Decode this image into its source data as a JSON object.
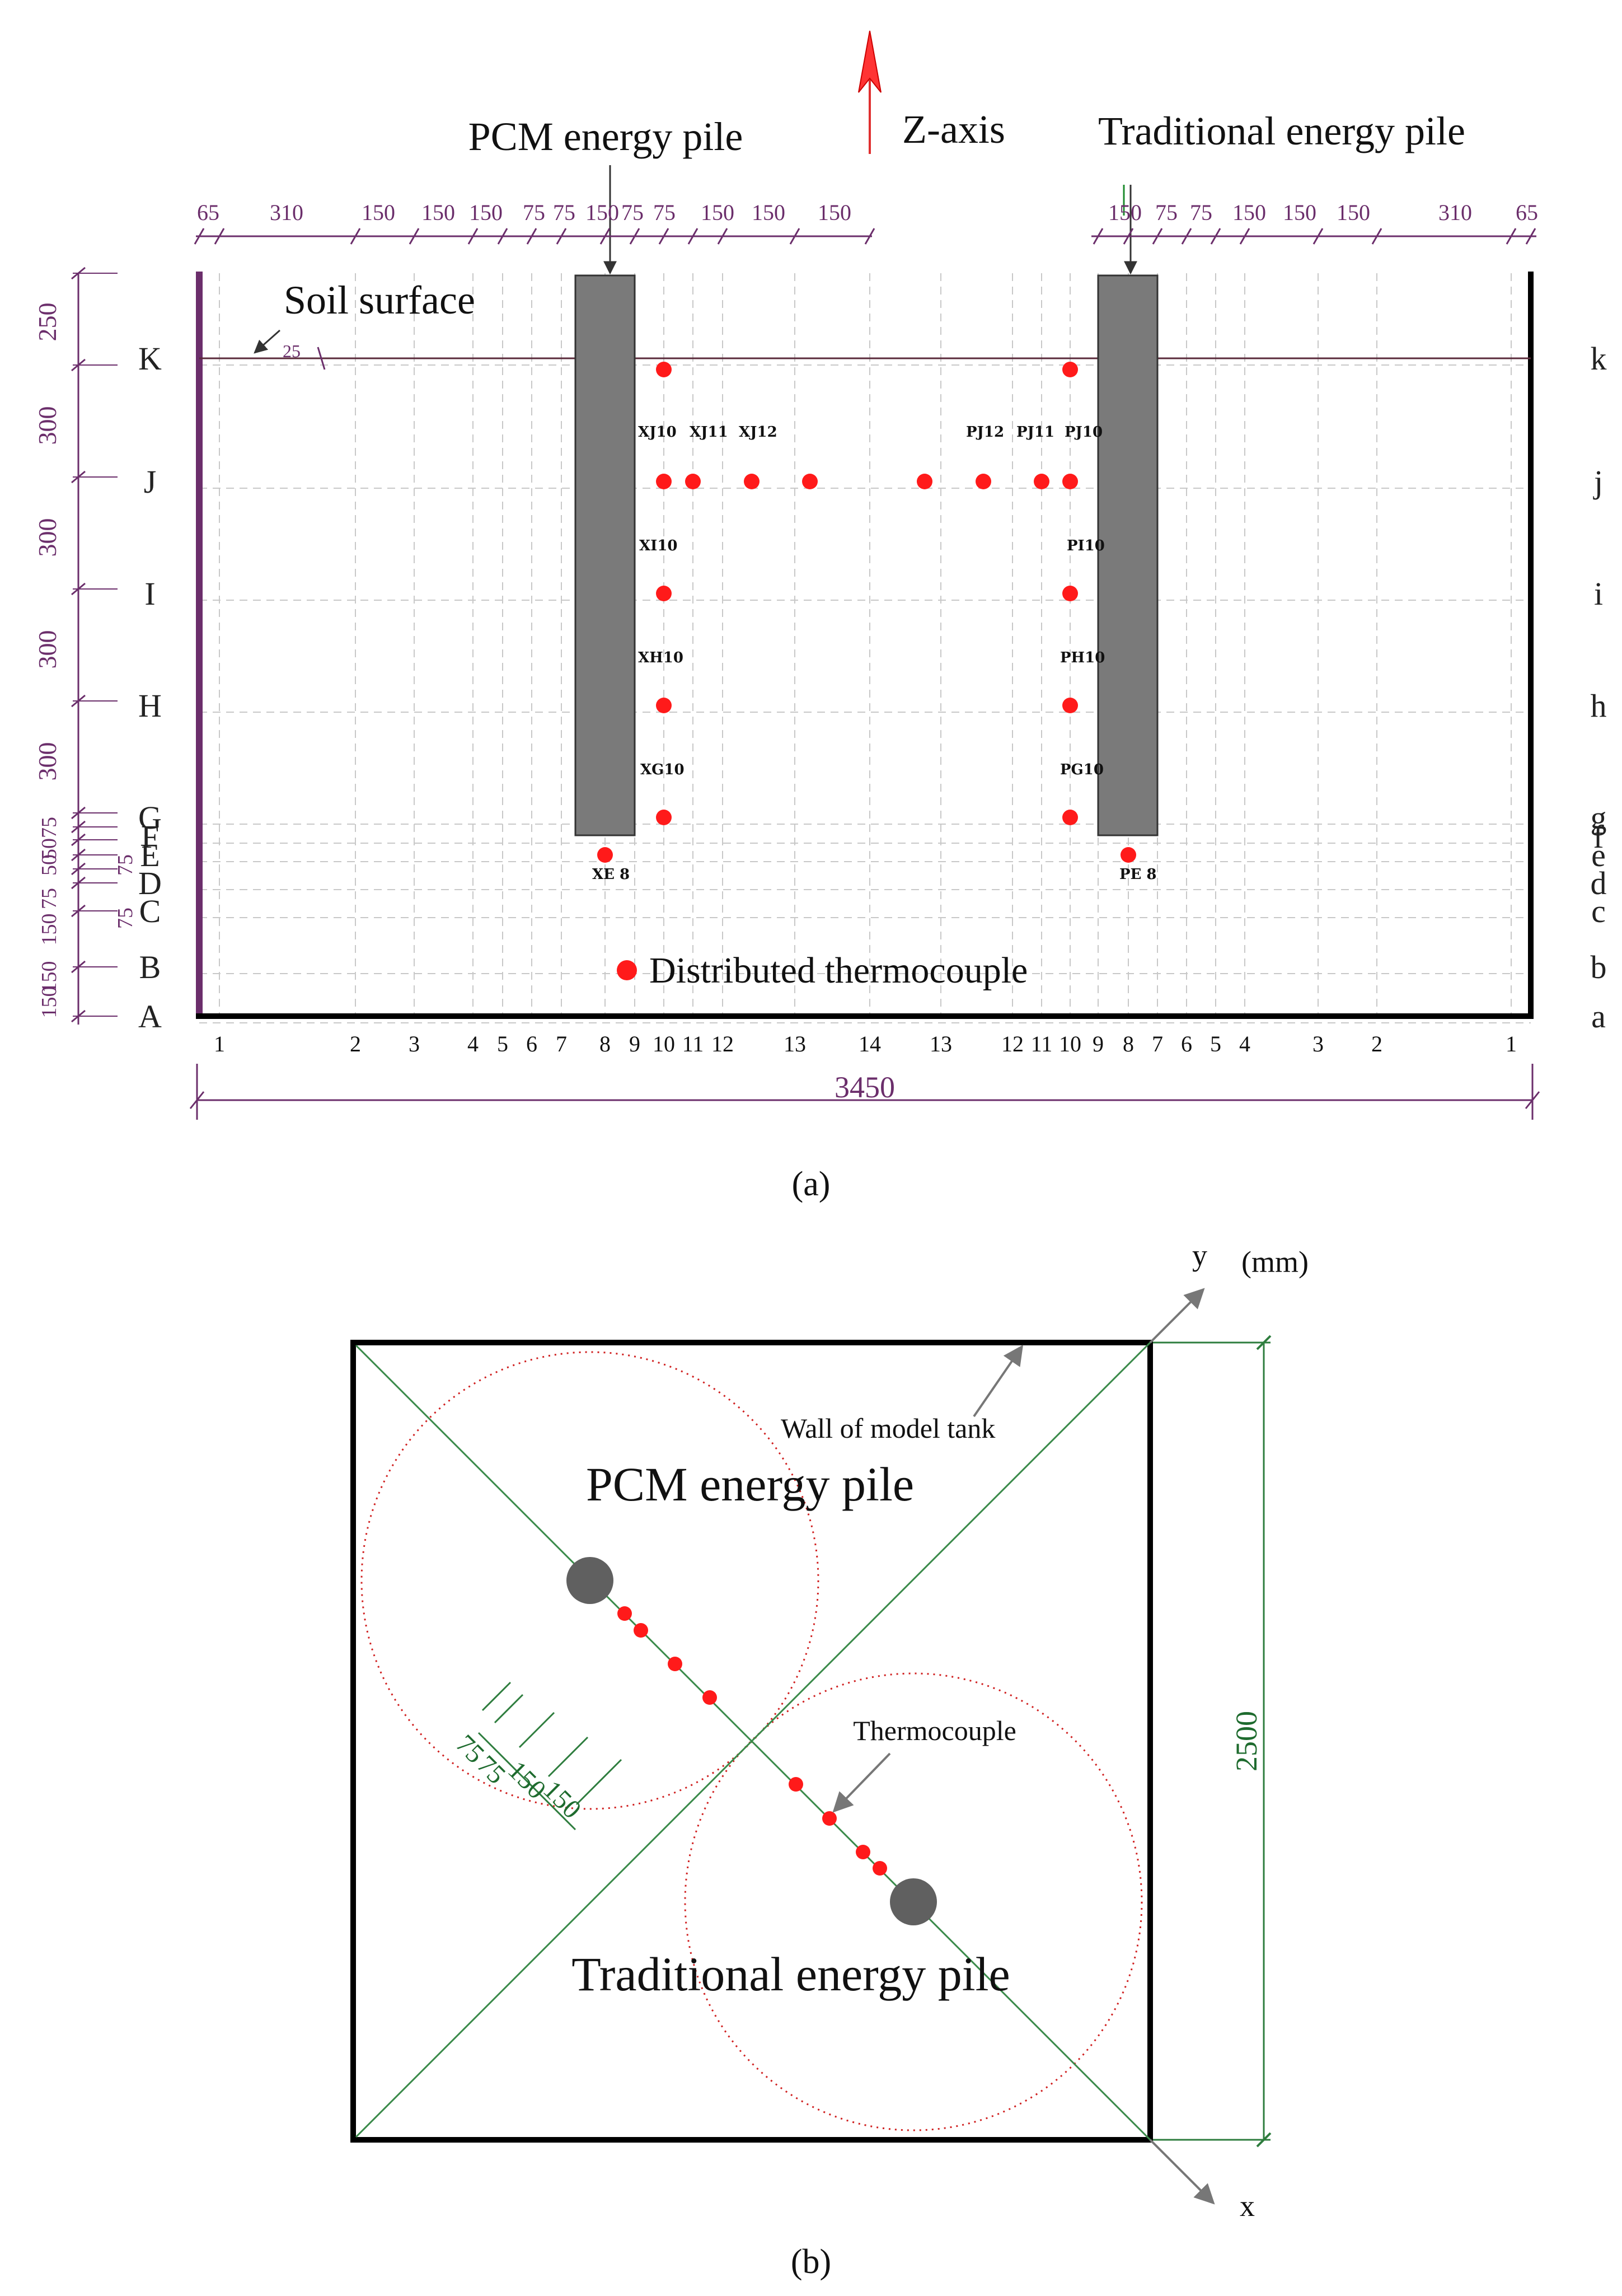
{
  "panel_a": {
    "caption": "(a)",
    "z_axis": "Z-axis",
    "pcm_pile_title": "PCM energy pile",
    "trad_pile_title": "Traditional energy pile",
    "soil_surface": "Soil surface",
    "soil_offset": "25",
    "legend": "Distributed thermocouple",
    "total_width": "3450",
    "top_dims_left": [
      "65",
      "310",
      "150",
      "150",
      "150",
      "75",
      "75",
      "150",
      "75",
      "75",
      "150",
      "150",
      "150"
    ],
    "top_dims_right": [
      "150",
      "75",
      "75",
      "150",
      "150",
      "150",
      "310",
      "65"
    ],
    "left_dims": [
      "250",
      "300",
      "300",
      "300",
      "300",
      "75",
      "50",
      "50",
      "75",
      "75",
      "150",
      "75",
      "150",
      "150"
    ],
    "rows_left": [
      "K",
      "J",
      "I",
      "H",
      "G",
      "F",
      "E",
      "D",
      "C",
      "B",
      "A"
    ],
    "rows_right": [
      "k",
      "j",
      "i",
      "h",
      "g",
      "f",
      "e",
      "d",
      "c",
      "b",
      "a"
    ],
    "columns": [
      "1",
      "2",
      "3",
      "4",
      "5",
      "6",
      "7",
      "8",
      "9",
      "10",
      "11",
      "12",
      "13",
      "14",
      "13",
      "12",
      "11",
      "10",
      "9",
      "8",
      "7",
      "6",
      "5",
      "4",
      "3",
      "2",
      "1"
    ],
    "sensor_labels": {
      "xj10": "XJ10",
      "xj11": "XJ11",
      "xj12": "XJ12",
      "pj12": "PJ12",
      "pj11": "PJ11",
      "pj10": "PJ10",
      "xi10": "XI10",
      "pi10": "PI10",
      "xh10": "XH10",
      "ph10": "PH10",
      "xg10": "XG10",
      "pg10": "PG10",
      "xe8": "XE 8",
      "pe8": "PE 8"
    }
  },
  "panel_b": {
    "caption": "(b)",
    "axis_y": "y",
    "axis_x": "x",
    "units": "(mm)",
    "wall_label": "Wall of model tank",
    "pcm_pile": "PCM energy pile",
    "trad_pile": "Traditional energy pile",
    "thermocouple": "Thermocouple",
    "side_dim": "2500",
    "spacing_dims": [
      "75",
      "75",
      "150",
      "150"
    ]
  },
  "colors": {
    "purple": "#6b2e6b",
    "pile": "#7a7a7a",
    "sensor": "#ff1a1a",
    "green": "#2e7d3e",
    "grid": "#c8c8c8"
  }
}
